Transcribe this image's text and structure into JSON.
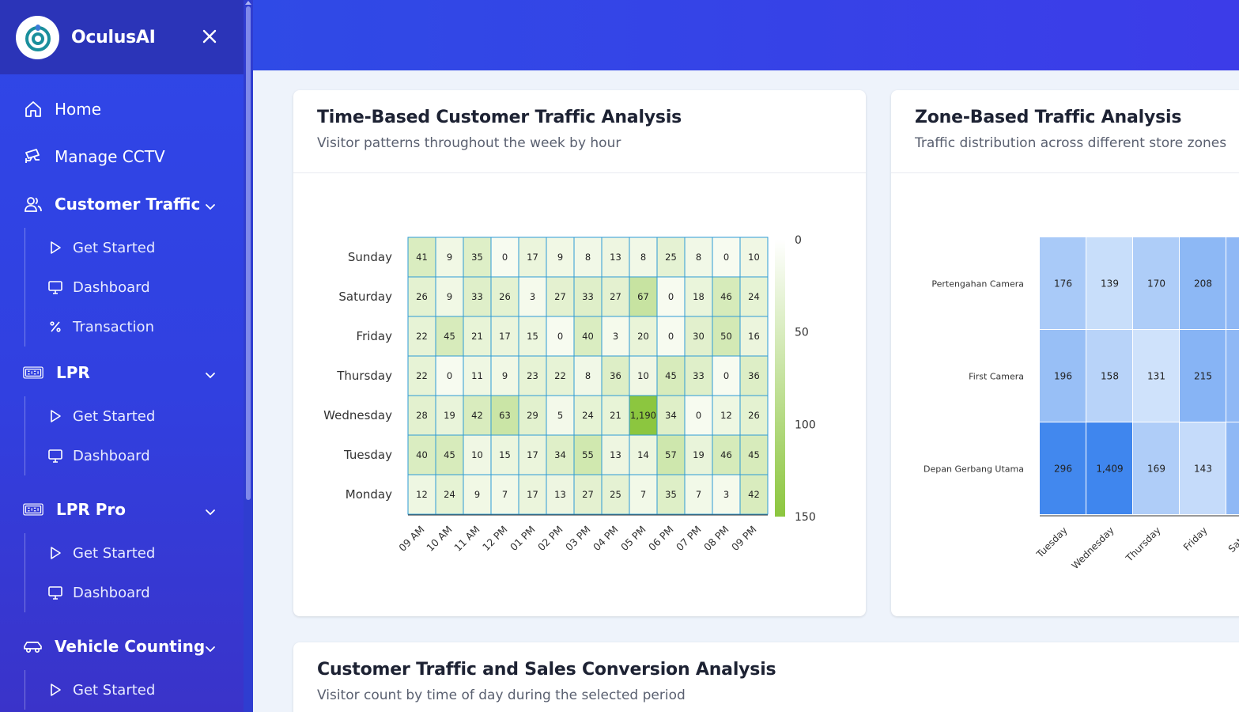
{
  "brand": {
    "name": "OculusAI"
  },
  "sidebar": {
    "items": [
      {
        "label": "Home",
        "icon": "home-icon"
      },
      {
        "label": "Manage CCTV",
        "icon": "cctv-icon"
      },
      {
        "label": "Customer Traffic",
        "icon": "users-icon",
        "expanded": true,
        "children": [
          {
            "label": "Get Started",
            "icon": "play-icon"
          },
          {
            "label": "Dashboard",
            "icon": "monitor-icon"
          },
          {
            "label": "Transaction",
            "icon": "percent-icon"
          }
        ]
      },
      {
        "label": "LPR",
        "icon": "license-plate-icon",
        "expanded": true,
        "children": [
          {
            "label": "Get Started",
            "icon": "play-icon"
          },
          {
            "label": "Dashboard",
            "icon": "monitor-icon"
          }
        ]
      },
      {
        "label": "LPR Pro",
        "icon": "license-plate-icon",
        "expanded": true,
        "children": [
          {
            "label": "Get Started",
            "icon": "play-icon"
          },
          {
            "label": "Dashboard",
            "icon": "monitor-icon"
          }
        ]
      },
      {
        "label": "Vehicle Counting",
        "icon": "car-icon",
        "expanded": true,
        "children": [
          {
            "label": "Get Started",
            "icon": "play-icon"
          }
        ]
      }
    ]
  },
  "cards": {
    "time_based": {
      "title": "Time-Based Customer Traffic Analysis",
      "subtitle": "Visitor patterns throughout the week by hour"
    },
    "zone_based": {
      "title": "Zone-Based Traffic Analysis",
      "subtitle": "Traffic distribution across different store zones"
    },
    "conversion": {
      "title": "Customer Traffic and Sales Conversion Analysis",
      "subtitle": "Visitor count by time of day during the selected period"
    }
  },
  "colors": {
    "accent": "#3147e6",
    "heat_low": "#f7fbf0",
    "heat_high": "#8cc63f",
    "zone_low": "#cfe2fb",
    "zone_high": "#3f86ee"
  },
  "chart_data": [
    {
      "type": "heatmap",
      "x": [
        "09 AM",
        "10 AM",
        "11 AM",
        "12 PM",
        "01 PM",
        "02 PM",
        "03 PM",
        "04 PM",
        "05 PM",
        "06 PM",
        "07 PM",
        "08 PM",
        "09 PM"
      ],
      "y": [
        "Sunday",
        "Saturday",
        "Friday",
        "Thursday",
        "Wednesday",
        "Tuesday",
        "Monday"
      ],
      "values": [
        [
          41,
          9,
          35,
          0,
          17,
          9,
          8,
          13,
          8,
          25,
          8,
          0,
          10
        ],
        [
          26,
          9,
          33,
          26,
          3,
          27,
          33,
          27,
          67,
          0,
          18,
          46,
          24
        ],
        [
          22,
          45,
          21,
          17,
          15,
          0,
          40,
          3,
          20,
          0,
          30,
          50,
          16
        ],
        [
          22,
          0,
          11,
          9,
          23,
          22,
          8,
          36,
          10,
          45,
          33,
          0,
          36
        ],
        [
          28,
          19,
          42,
          63,
          29,
          5,
          24,
          21,
          1190,
          34,
          0,
          12,
          26
        ],
        [
          40,
          45,
          10,
          15,
          17,
          34,
          55,
          13,
          14,
          57,
          19,
          46,
          45
        ],
        [
          12,
          24,
          9,
          7,
          17,
          13,
          27,
          25,
          7,
          35,
          7,
          3,
          42
        ]
      ],
      "colorbar": {
        "ticks": [
          0,
          50,
          100,
          150
        ],
        "range": [
          0,
          150
        ]
      }
    },
    {
      "type": "heatmap",
      "x": [
        "Tuesday",
        "Wednesday",
        "Thursday",
        "Friday",
        "Saturday"
      ],
      "y": [
        "Pertengahan Camera",
        "First Camera",
        "Depan Gerbang Utama"
      ],
      "values": [
        [
          176,
          139,
          170,
          208,
          null
        ],
        [
          196,
          158,
          131,
          215,
          null
        ],
        [
          296,
          1409,
          169,
          143,
          null
        ]
      ],
      "x_visible_labels": [
        "Tuesday",
        "Wednesday",
        "Thursday",
        "Friday",
        "Saturd"
      ]
    }
  ]
}
